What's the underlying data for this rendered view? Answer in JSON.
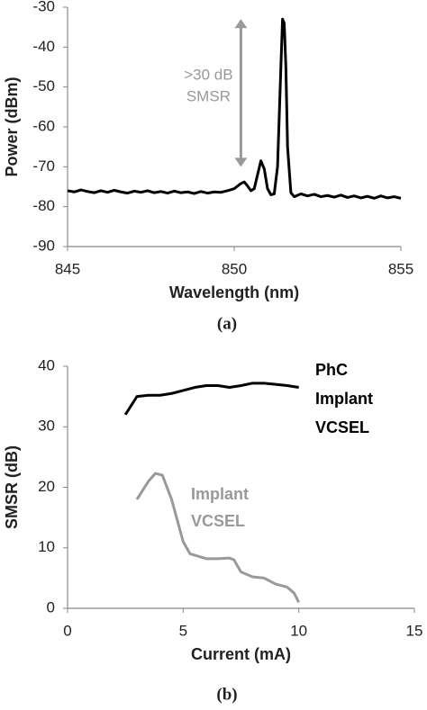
{
  "chart_data": [
    {
      "type": "line",
      "caption": "(a)",
      "xlabel": "Wavelength (nm)",
      "ylabel": "Power (dBm)",
      "xlim": [
        845,
        855
      ],
      "xticks": [
        845,
        850,
        855
      ],
      "ylim": [
        -90,
        -30
      ],
      "yticks": [
        -90,
        -80,
        -70,
        -60,
        -50,
        -40,
        -30
      ],
      "annotation": {
        "lines": [
          ">30 dB",
          "SMSR"
        ],
        "color": "#999999",
        "arrow_x": 850.2,
        "arrow_from": -33,
        "arrow_to": -70
      },
      "series": [
        {
          "color": "#000000",
          "x": [
            845.0,
            845.2,
            845.4,
            845.6,
            845.8,
            846.0,
            846.2,
            846.4,
            846.6,
            846.8,
            847.0,
            847.2,
            847.4,
            847.6,
            847.8,
            848.0,
            848.2,
            848.4,
            848.6,
            848.8,
            849.0,
            849.2,
            849.4,
            849.6,
            849.8,
            850.0,
            850.2,
            850.3,
            850.4,
            850.5,
            850.6,
            850.7,
            850.8,
            850.9,
            851.0,
            851.1,
            851.2,
            851.3,
            851.4,
            851.45,
            851.5,
            851.55,
            851.6,
            851.7,
            851.8,
            852.0,
            852.2,
            852.4,
            852.6,
            852.8,
            853.0,
            853.2,
            853.4,
            853.6,
            853.8,
            854.0,
            854.2,
            854.4,
            854.6,
            854.8,
            855.0
          ],
          "values": [
            -76,
            -76.3,
            -75.8,
            -76.2,
            -76.5,
            -76,
            -76.4,
            -75.9,
            -76.3,
            -76.6,
            -76.1,
            -76.4,
            -76,
            -76.5,
            -76.2,
            -76.6,
            -76.1,
            -76.5,
            -76.3,
            -76.7,
            -76.2,
            -76.6,
            -76.3,
            -76.4,
            -76,
            -75.5,
            -74.2,
            -73.8,
            -74.8,
            -76,
            -75.5,
            -72,
            -68.5,
            -70.5,
            -75.5,
            -77,
            -76.8,
            -70,
            -45,
            -33,
            -34,
            -45,
            -65,
            -76.5,
            -77.5,
            -76.8,
            -77.3,
            -76.9,
            -77.5,
            -77.2,
            -77.6,
            -77.1,
            -77.7,
            -77.3,
            -77.8,
            -77.4,
            -77.9,
            -77.3,
            -77.8,
            -77.5,
            -77.9
          ]
        }
      ]
    },
    {
      "type": "line",
      "caption": "(b)",
      "xlabel": "Current (mA)",
      "ylabel": "SMSR (dB)",
      "xlim": [
        0,
        15
      ],
      "xticks": [
        0,
        5,
        10,
        15
      ],
      "ylim": [
        0,
        40
      ],
      "yticks": [
        0,
        10,
        20,
        30,
        40
      ],
      "series": [
        {
          "label": [
            "PhC",
            "Implant",
            "VCSEL"
          ],
          "color": "#000000",
          "x": [
            2.5,
            3,
            3.5,
            4,
            4.5,
            5,
            5.5,
            6,
            6.5,
            7,
            7.5,
            8,
            8.5,
            9,
            9.5,
            10
          ],
          "values": [
            32,
            35,
            35.2,
            35.2,
            35.5,
            36,
            36.5,
            36.8,
            36.8,
            36.5,
            36.8,
            37.2,
            37.2,
            37,
            36.8,
            36.5
          ]
        },
        {
          "label": [
            "Implant",
            "VCSEL"
          ],
          "color": "#999999",
          "x": [
            3,
            3.5,
            3.8,
            4.1,
            4.5,
            5,
            5.3,
            6,
            6.5,
            7,
            7.2,
            7.5,
            8,
            8.5,
            9,
            9.5,
            9.8,
            10
          ],
          "values": [
            18,
            21,
            22.3,
            22,
            18,
            11,
            9,
            8.2,
            8.2,
            8.3,
            8,
            6,
            5.2,
            5,
            4,
            3.5,
            2.5,
            1
          ]
        }
      ]
    }
  ]
}
